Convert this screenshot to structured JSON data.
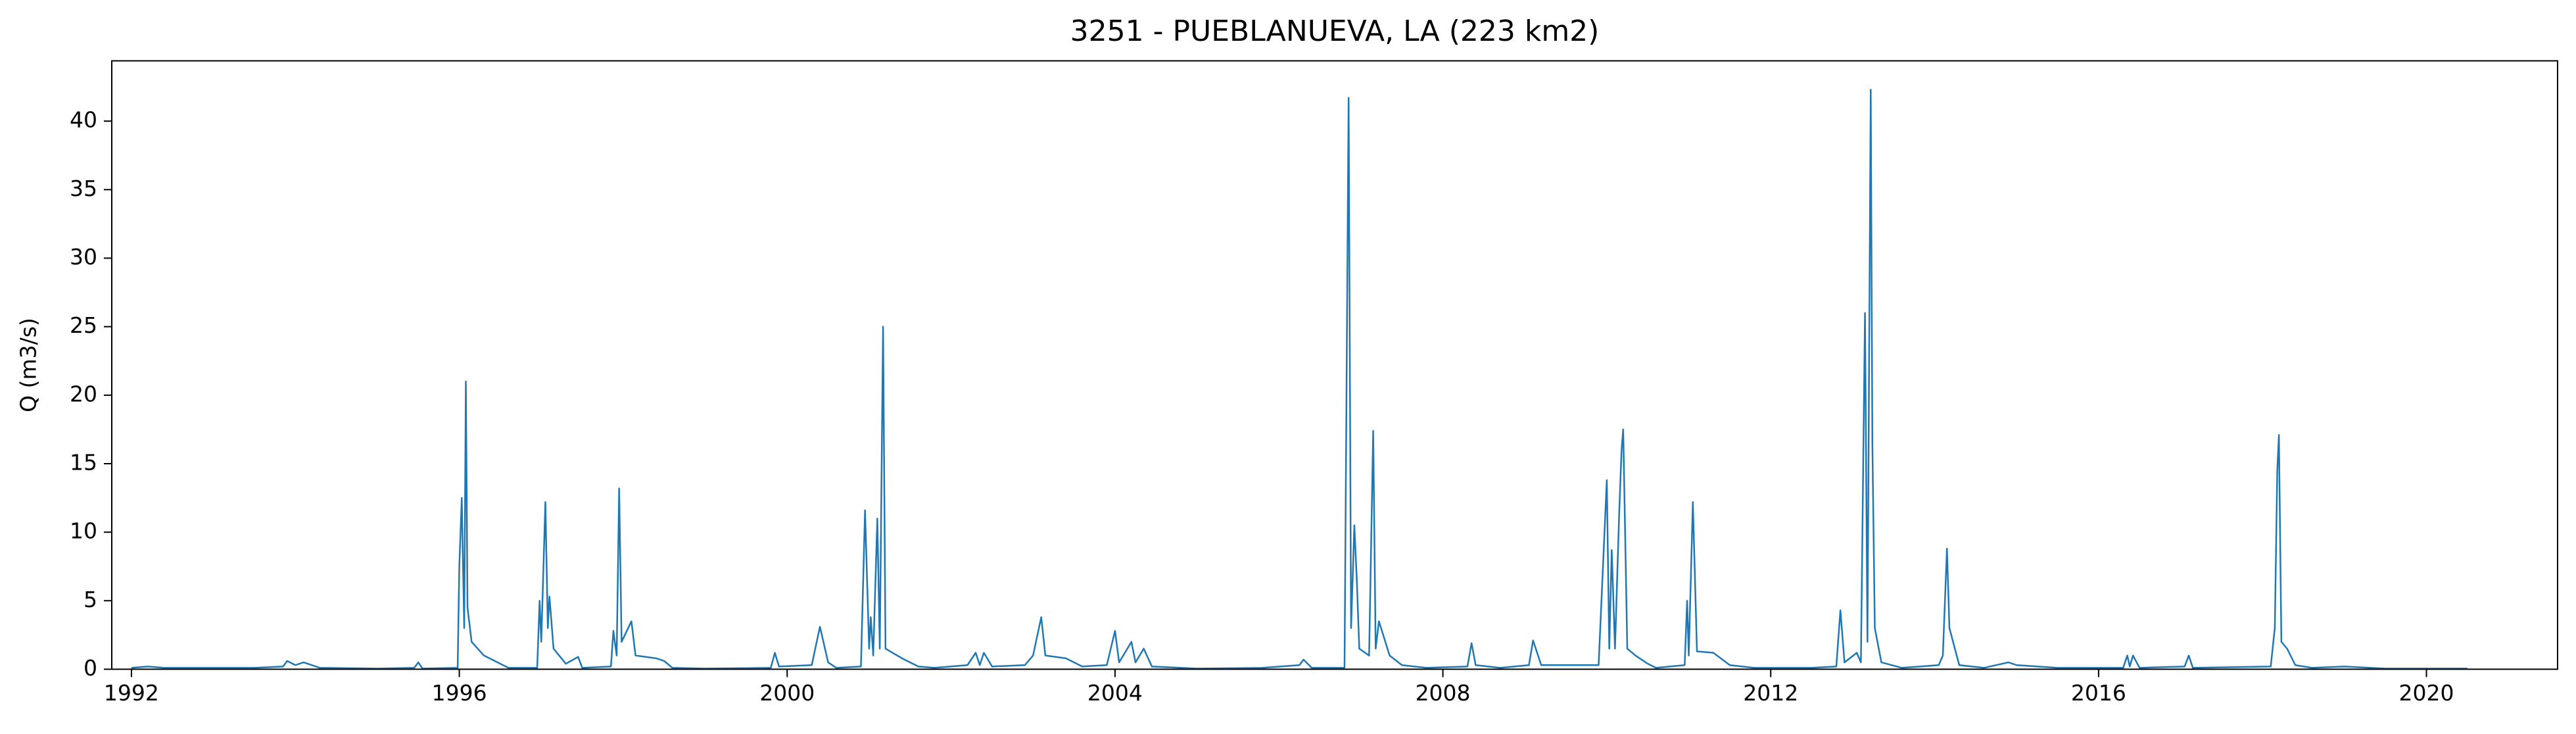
{
  "chart_data": {
    "type": "line",
    "title": "3251 - PUEBLANUEVA, LA (223 km2)",
    "y_label": "Q (m3/s)",
    "series": [
      {
        "color": "#1f77b4",
        "x": [
          1992.0,
          1992.2,
          1992.4,
          1993.0,
          1993.5,
          1993.85,
          1993.9,
          1994.0,
          1994.1,
          1994.3,
          1995.0,
          1995.45,
          1995.5,
          1995.55,
          1995.98,
          1996.0,
          1996.03,
          1996.06,
          1996.08,
          1996.1,
          1996.15,
          1996.3,
          1996.5,
          1996.6,
          1996.95,
          1996.98,
          1997.0,
          1997.05,
          1997.08,
          1997.1,
          1997.15,
          1997.3,
          1997.45,
          1997.5,
          1997.85,
          1997.88,
          1997.92,
          1997.95,
          1997.98,
          1998.1,
          1998.15,
          1998.4,
          1998.5,
          1998.6,
          1999.0,
          1999.8,
          1999.85,
          1999.9,
          2000.3,
          2000.4,
          2000.5,
          2000.6,
          2000.9,
          2000.95,
          2001.0,
          2001.02,
          2001.05,
          2001.1,
          2001.13,
          2001.17,
          2001.2,
          2001.4,
          2001.6,
          2001.8,
          2002.2,
          2002.3,
          2002.35,
          2002.4,
          2002.5,
          2002.9,
          2003.0,
          2003.1,
          2003.15,
          2003.4,
          2003.6,
          2003.9,
          2004.0,
          2004.05,
          2004.2,
          2004.25,
          2004.35,
          2004.45,
          2005.0,
          2005.8,
          2006.25,
          2006.3,
          2006.4,
          2006.8,
          2006.85,
          2006.88,
          2006.92,
          2006.95,
          2006.98,
          2007.1,
          2007.15,
          2007.18,
          2007.22,
          2007.35,
          2007.5,
          2007.8,
          2008.3,
          2008.35,
          2008.4,
          2008.7,
          2009.05,
          2009.1,
          2009.2,
          2009.9,
          2010.0,
          2010.03,
          2010.06,
          2010.1,
          2010.15,
          2010.18,
          2010.2,
          2010.25,
          2010.35,
          2010.5,
          2010.6,
          2010.95,
          2010.98,
          2011.0,
          2011.05,
          2011.1,
          2011.3,
          2011.5,
          2011.8,
          2012.5,
          2012.8,
          2012.85,
          2012.9,
          2013.05,
          2013.1,
          2013.15,
          2013.18,
          2013.22,
          2013.24,
          2013.27,
          2013.35,
          2013.6,
          2014.05,
          2014.1,
          2014.15,
          2014.18,
          2014.3,
          2014.6,
          2014.9,
          2015.0,
          2015.5,
          2016.3,
          2016.35,
          2016.38,
          2016.42,
          2016.5,
          2017.05,
          2017.1,
          2017.15,
          2018.1,
          2018.15,
          2018.18,
          2018.2,
          2018.23,
          2018.3,
          2018.4,
          2018.6,
          2019.0,
          2019.5,
          2020.5
        ],
        "values": [
          0.1,
          0.2,
          0.1,
          0.1,
          0.1,
          0.2,
          0.6,
          0.3,
          0.5,
          0.1,
          0.05,
          0.1,
          0.5,
          0.05,
          0.1,
          7.5,
          12.5,
          3,
          21,
          4.5,
          2,
          1.0,
          0.4,
          0.1,
          0.1,
          5,
          2,
          12.2,
          3,
          5.3,
          1.5,
          0.4,
          0.9,
          0.1,
          0.2,
          2.8,
          1,
          13.2,
          2,
          3.5,
          1,
          0.8,
          0.6,
          0.1,
          0.05,
          0.1,
          1.2,
          0.2,
          0.3,
          3.1,
          0.5,
          0.1,
          0.2,
          11.6,
          1.5,
          3.8,
          1,
          11,
          1.5,
          25,
          1.5,
          0.8,
          0.2,
          0.1,
          0.3,
          1.2,
          0.3,
          1.2,
          0.2,
          0.3,
          1.0,
          3.8,
          1,
          0.8,
          0.2,
          0.3,
          2.8,
          0.5,
          2,
          0.5,
          1.5,
          0.2,
          0.05,
          0.1,
          0.3,
          0.7,
          0.1,
          0.1,
          41.7,
          3,
          10.5,
          6.5,
          1.5,
          1.0,
          17.4,
          1.5,
          3.5,
          1,
          0.3,
          0.1,
          0.2,
          1.9,
          0.3,
          0.1,
          0.3,
          2.1,
          0.3,
          0.3,
          13.8,
          1.5,
          8.7,
          1.5,
          11.2,
          16,
          17.5,
          1.5,
          1,
          0.4,
          0.1,
          0.3,
          5,
          1,
          12.2,
          1.3,
          1.2,
          0.3,
          0.1,
          0.1,
          0.2,
          4.3,
          0.5,
          1.2,
          0.5,
          26,
          2,
          42.3,
          16.5,
          3,
          0.5,
          0.1,
          0.3,
          1.0,
          8.8,
          3,
          0.3,
          0.1,
          0.5,
          0.3,
          0.1,
          0.1,
          1.0,
          0.2,
          1.0,
          0.1,
          0.2,
          1.0,
          0.1,
          0.2,
          3,
          14.5,
          17.1,
          2,
          1.5,
          0.3,
          0.1,
          0.2,
          0.05,
          0.05
        ]
      }
    ],
    "xlim": [
      1991.76,
      2021.6
    ],
    "ylim": [
      0,
      44.4
    ],
    "xticks": [
      1992,
      1996,
      2000,
      2004,
      2008,
      2012,
      2016,
      2020
    ],
    "yticks": [
      0,
      5,
      10,
      15,
      20,
      25,
      30,
      35,
      40
    ]
  }
}
